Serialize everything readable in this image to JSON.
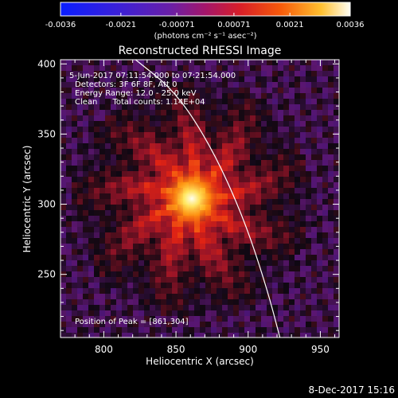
{
  "chart_data": {
    "type": "heatmap",
    "title": "Reconstructed RHESSI Image",
    "xlabel": "Heliocentric X (arcsec)",
    "ylabel": "Heliocentric Y (arcsec)",
    "xlim": [
      770,
      963
    ],
    "ylim": [
      205,
      403
    ],
    "xticks": [
      800,
      850,
      900,
      950
    ],
    "yticks": [
      250,
      300,
      350,
      400
    ],
    "colorbar": {
      "min": -0.0036,
      "max": 0.0036,
      "tick_values": [
        -0.0036,
        -0.0021,
        -0.00071,
        0.00071,
        0.0021,
        0.0036
      ],
      "tick_labels": [
        "-0.0036",
        "-0.0021",
        "-0.00071",
        "0.00071",
        "0.0021",
        "0.0036"
      ],
      "unit_label": "(photons cm⁻² s⁻¹ asec⁻²)",
      "colormap": "blue-purple-red-orange-yellow-white"
    },
    "annotations": [
      "5-Jun-2017 07:11:54.000 to 07:21:54.000",
      "Detectors: 3F 6F 8F, Att 0",
      "Energy Range: 12.0 - 25.0 keV",
      "Clean      Total counts: 1.14E+04"
    ],
    "peak_label": "Position of Peak = [861,304]",
    "peak": {
      "x": 861,
      "y": 304
    },
    "limb_curve": [
      {
        "x": 822,
        "y": 403
      },
      {
        "x": 850,
        "y": 380
      },
      {
        "x": 875,
        "y": 340
      },
      {
        "x": 897,
        "y": 290
      },
      {
        "x": 913,
        "y": 240
      },
      {
        "x": 922,
        "y": 205
      }
    ],
    "colors": {
      "background": "#000000",
      "limb": "#ffffff",
      "text": "#ffffff"
    }
  },
  "footer": {
    "timestamp": "8-Dec-2017 15:16"
  }
}
